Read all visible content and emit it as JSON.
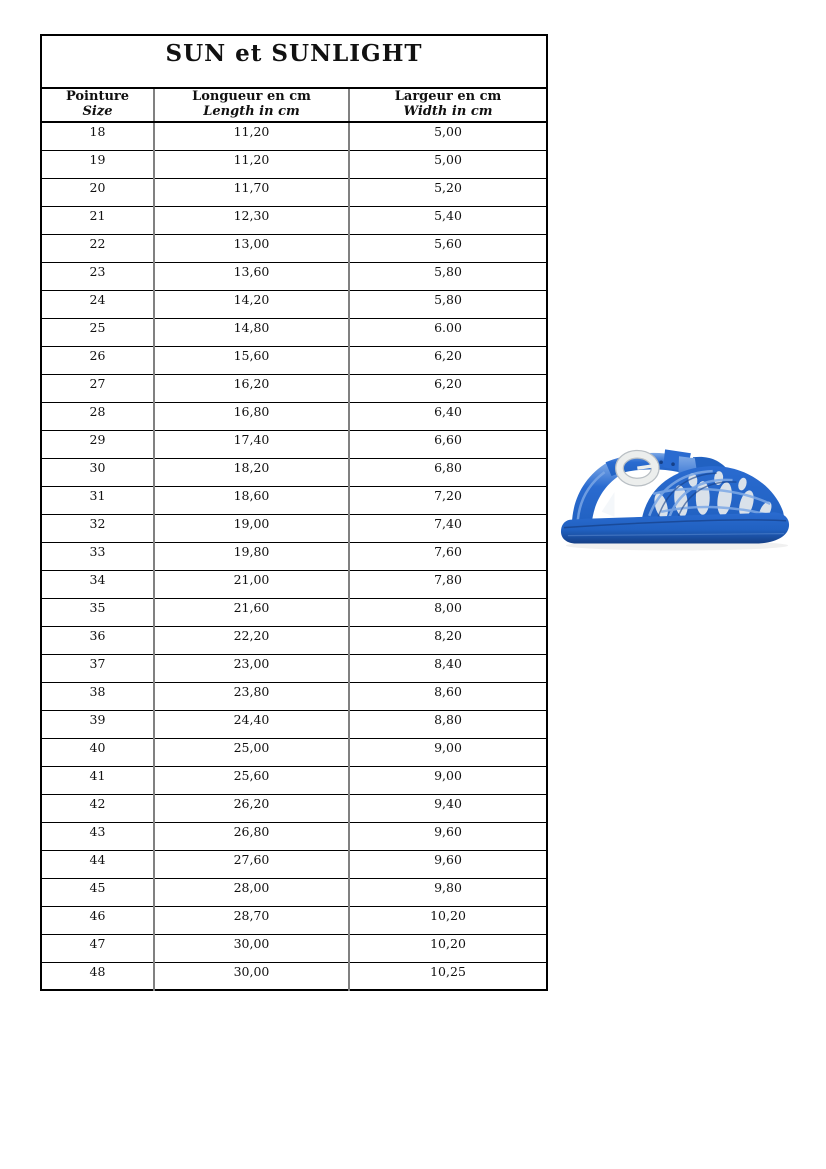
{
  "title": "SUN et SUNLIGHT",
  "table": {
    "columns": [
      {
        "label_fr": "Pointure",
        "label_en": "Size"
      },
      {
        "label_fr": "Longueur en cm",
        "label_en": "Length in cm"
      },
      {
        "label_fr": "Largeur en cm",
        "label_en": "Width in cm"
      }
    ],
    "rows": [
      [
        "18",
        "11,20",
        "5,00"
      ],
      [
        "19",
        "11,20",
        "5,00"
      ],
      [
        "20",
        "11,70",
        "5,20"
      ],
      [
        "21",
        "12,30",
        "5,40"
      ],
      [
        "22",
        "13,00",
        "5,60"
      ],
      [
        "23",
        "13,60",
        "5,80"
      ],
      [
        "24",
        "14,20",
        "5,80"
      ],
      [
        "25",
        "14,80",
        "6.00"
      ],
      [
        "26",
        "15,60",
        "6,20"
      ],
      [
        "27",
        "16,20",
        "6,20"
      ],
      [
        "28",
        "16,80",
        "6,40"
      ],
      [
        "29",
        "17,40",
        "6,60"
      ],
      [
        "30",
        "18,20",
        "6,80"
      ],
      [
        "31",
        "18,60",
        "7,20"
      ],
      [
        "32",
        "19,00",
        "7,40"
      ],
      [
        "33",
        "19,80",
        "7,60"
      ],
      [
        "34",
        "21,00",
        "7,80"
      ],
      [
        "35",
        "21,60",
        "8,00"
      ],
      [
        "36",
        "22,20",
        "8,20"
      ],
      [
        "37",
        "23,00",
        "8,40"
      ],
      [
        "38",
        "23,80",
        "8,60"
      ],
      [
        "39",
        "24,40",
        "8,80"
      ],
      [
        "40",
        "25,00",
        "9,00"
      ],
      [
        "41",
        "25,60",
        "9,00"
      ],
      [
        "42",
        "26,20",
        "9,40"
      ],
      [
        "43",
        "26,80",
        "9,60"
      ],
      [
        "44",
        "27,60",
        "9,60"
      ],
      [
        "45",
        "28,00",
        "9,80"
      ],
      [
        "46",
        "28,70",
        "10,20"
      ],
      [
        "47",
        "30,00",
        "10,20"
      ],
      [
        "48",
        "30,00",
        "10,25"
      ]
    ]
  },
  "product_image": {
    "name": "blue-jelly-sandal",
    "colors": {
      "main": "#2161c1",
      "mid": "#2a6bd0",
      "dark": "#153f86",
      "lite": "#7ea9e6",
      "gap": "#d9e1ea",
      "buckle": "#eceeed",
      "buckleshadow": "#b9bfc4"
    }
  }
}
